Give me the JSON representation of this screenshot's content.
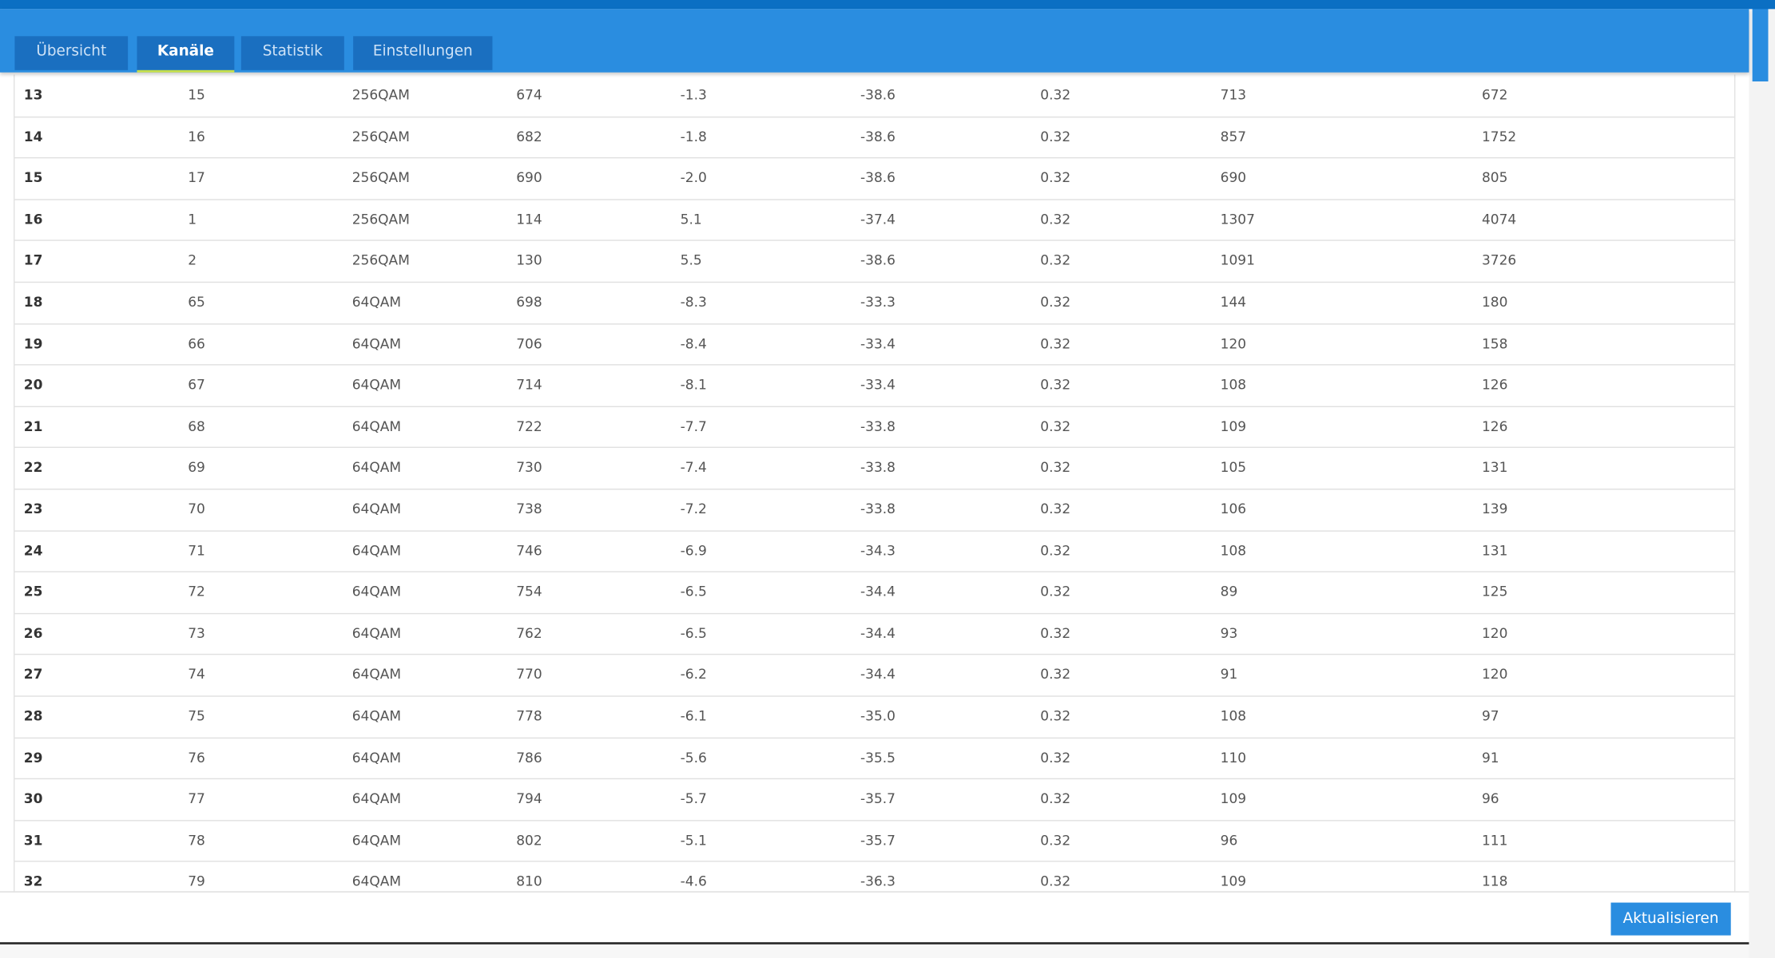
{
  "tabs": [
    "Übersicht",
    "Kanäle",
    "Statistik",
    "Einstellungen"
  ],
  "active_tab": 1,
  "table": {
    "rows": [
      [
        "13",
        "15",
        "256QAM",
        "674",
        "-1.3",
        "-38.6",
        "0.32",
        "713",
        "672"
      ],
      [
        "14",
        "16",
        "256QAM",
        "682",
        "-1.8",
        "-38.6",
        "0.32",
        "857",
        "1752"
      ],
      [
        "15",
        "17",
        "256QAM",
        "690",
        "-2.0",
        "-38.6",
        "0.32",
        "690",
        "805"
      ],
      [
        "16",
        "1",
        "256QAM",
        "114",
        "5.1",
        "-37.4",
        "0.32",
        "1307",
        "4074"
      ],
      [
        "17",
        "2",
        "256QAM",
        "130",
        "5.5",
        "-38.6",
        "0.32",
        "1091",
        "3726"
      ],
      [
        "18",
        "65",
        "64QAM",
        "698",
        "-8.3",
        "-33.3",
        "0.32",
        "144",
        "180"
      ],
      [
        "19",
        "66",
        "64QAM",
        "706",
        "-8.4",
        "-33.4",
        "0.32",
        "120",
        "158"
      ],
      [
        "20",
        "67",
        "64QAM",
        "714",
        "-8.1",
        "-33.4",
        "0.32",
        "108",
        "126"
      ],
      [
        "21",
        "68",
        "64QAM",
        "722",
        "-7.7",
        "-33.8",
        "0.32",
        "109",
        "126"
      ],
      [
        "22",
        "69",
        "64QAM",
        "730",
        "-7.4",
        "-33.8",
        "0.32",
        "105",
        "131"
      ],
      [
        "23",
        "70",
        "64QAM",
        "738",
        "-7.2",
        "-33.8",
        "0.32",
        "106",
        "139"
      ],
      [
        "24",
        "71",
        "64QAM",
        "746",
        "-6.9",
        "-34.3",
        "0.32",
        "108",
        "131"
      ],
      [
        "25",
        "72",
        "64QAM",
        "754",
        "-6.5",
        "-34.4",
        "0.32",
        "89",
        "125"
      ],
      [
        "26",
        "73",
        "64QAM",
        "762",
        "-6.5",
        "-34.4",
        "0.32",
        "93",
        "120"
      ],
      [
        "27",
        "74",
        "64QAM",
        "770",
        "-6.2",
        "-34.4",
        "0.32",
        "91",
        "120"
      ],
      [
        "28",
        "75",
        "64QAM",
        "778",
        "-6.1",
        "-35.0",
        "0.32",
        "108",
        "97"
      ],
      [
        "29",
        "76",
        "64QAM",
        "786",
        "-5.6",
        "-35.5",
        "0.32",
        "110",
        "91"
      ],
      [
        "30",
        "77",
        "64QAM",
        "794",
        "-5.7",
        "-35.7",
        "0.32",
        "109",
        "96"
      ],
      [
        "31",
        "78",
        "64QAM",
        "802",
        "-5.1",
        "-35.7",
        "0.32",
        "96",
        "111"
      ],
      [
        "32",
        "79",
        "64QAM",
        "810",
        "-4.6",
        "-36.3",
        "0.32",
        "109",
        "118"
      ]
    ]
  },
  "button": "Aktualisieren"
}
